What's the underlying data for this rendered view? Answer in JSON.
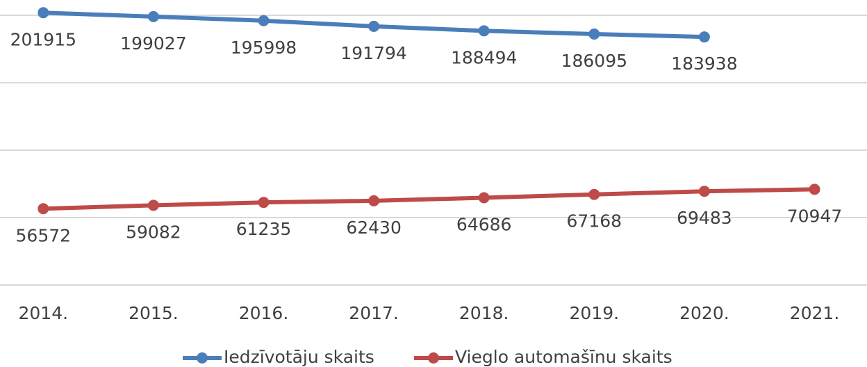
{
  "chart_data": {
    "type": "line",
    "categories": [
      "2014.",
      "2015.",
      "2016.",
      "2017.",
      "2018.",
      "2019.",
      "2020.",
      "2021."
    ],
    "series": [
      {
        "name": "Iedzīvotāju skaits",
        "color": "#4a7ebb",
        "values": [
          201915,
          199027,
          195998,
          191794,
          188494,
          186095,
          183938,
          null
        ]
      },
      {
        "name": "Vieglo automašīnu skaits",
        "color": "#be4b48",
        "values": [
          56572,
          59082,
          61235,
          62430,
          64686,
          67168,
          69483,
          70947
        ]
      }
    ],
    "ylim": [
      0,
      200000
    ],
    "yticks": [
      0,
      50000,
      100000,
      150000,
      200000
    ],
    "grid": true,
    "legend": "bottom"
  }
}
